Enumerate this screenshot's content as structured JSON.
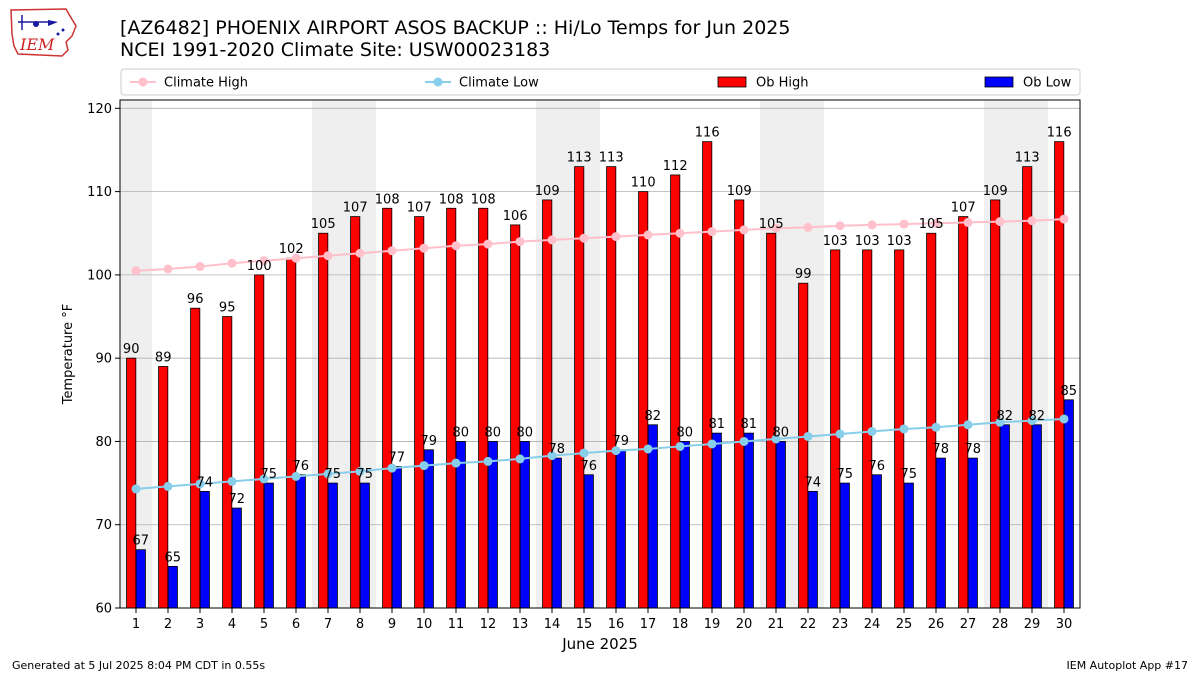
{
  "header": {
    "title_line1": "[AZ6482] PHOENIX AIRPORT ASOS BACKUP :: Hi/Lo Temps for Jun 2025",
    "title_line2": "NCEI 1991-2020 Climate Site: USW00023183"
  },
  "logo": {
    "text": "IEM"
  },
  "footer": {
    "left": "Generated at 5 Jul 2025 8:04 PM CDT in 0.55s",
    "right": "IEM Autoplot App #17"
  },
  "colors": {
    "ob_high": "#ff0000",
    "ob_low": "#0000ff",
    "climate_high": "#ffc0cb",
    "climate_low": "#87ceeb",
    "weekend_shade": "#efefef",
    "grid": "#b0b0b0"
  },
  "chart_data": {
    "type": "bar",
    "xlabel": "June 2025",
    "ylabel": "Temperature °F",
    "ylim": [
      60,
      121
    ],
    "yticks": [
      60,
      70,
      80,
      90,
      100,
      110,
      120
    ],
    "grid": "horizontal",
    "legend_position": "top",
    "categories": [
      "1",
      "2",
      "3",
      "4",
      "5",
      "6",
      "7",
      "8",
      "9",
      "10",
      "11",
      "12",
      "13",
      "14",
      "15",
      "16",
      "17",
      "18",
      "19",
      "20",
      "21",
      "22",
      "23",
      "24",
      "25",
      "26",
      "27",
      "28",
      "29",
      "30"
    ],
    "weekend_days": [
      1,
      7,
      8,
      14,
      15,
      21,
      22,
      28,
      29
    ],
    "series": [
      {
        "name": "Ob High",
        "kind": "bar",
        "color": "#ff0000",
        "values": [
          90,
          89,
          96,
          95,
          100,
          102,
          105,
          107,
          108,
          107,
          108,
          108,
          106,
          109,
          113,
          113,
          110,
          112,
          116,
          109,
          105,
          99,
          103,
          103,
          103,
          105,
          107,
          109,
          113,
          116
        ]
      },
      {
        "name": "Ob Low",
        "kind": "bar",
        "color": "#0000ff",
        "values": [
          67,
          65,
          74,
          72,
          75,
          76,
          75,
          75,
          77,
          79,
          80,
          80,
          80,
          78,
          76,
          79,
          82,
          80,
          81,
          81,
          80,
          74,
          75,
          76,
          75,
          78,
          78,
          82,
          82,
          85
        ]
      },
      {
        "name": "Climate High",
        "kind": "line",
        "color": "#ffc0cb",
        "values": [
          100.5,
          100.7,
          101.0,
          101.4,
          101.7,
          102.0,
          102.3,
          102.6,
          102.9,
          103.2,
          103.5,
          103.7,
          104.0,
          104.2,
          104.4,
          104.6,
          104.8,
          105.0,
          105.2,
          105.4,
          105.6,
          105.7,
          105.9,
          106.0,
          106.1,
          106.2,
          106.3,
          106.4,
          106.5,
          106.7
        ]
      },
      {
        "name": "Climate Low",
        "kind": "line",
        "color": "#87ceeb",
        "values": [
          74.3,
          74.6,
          74.9,
          75.2,
          75.5,
          75.8,
          76.1,
          76.4,
          76.8,
          77.1,
          77.4,
          77.6,
          77.9,
          78.3,
          78.6,
          78.9,
          79.1,
          79.4,
          79.7,
          80.0,
          80.3,
          80.6,
          80.9,
          81.2,
          81.5,
          81.7,
          82.0,
          82.3,
          82.5,
          82.7
        ]
      }
    ]
  }
}
